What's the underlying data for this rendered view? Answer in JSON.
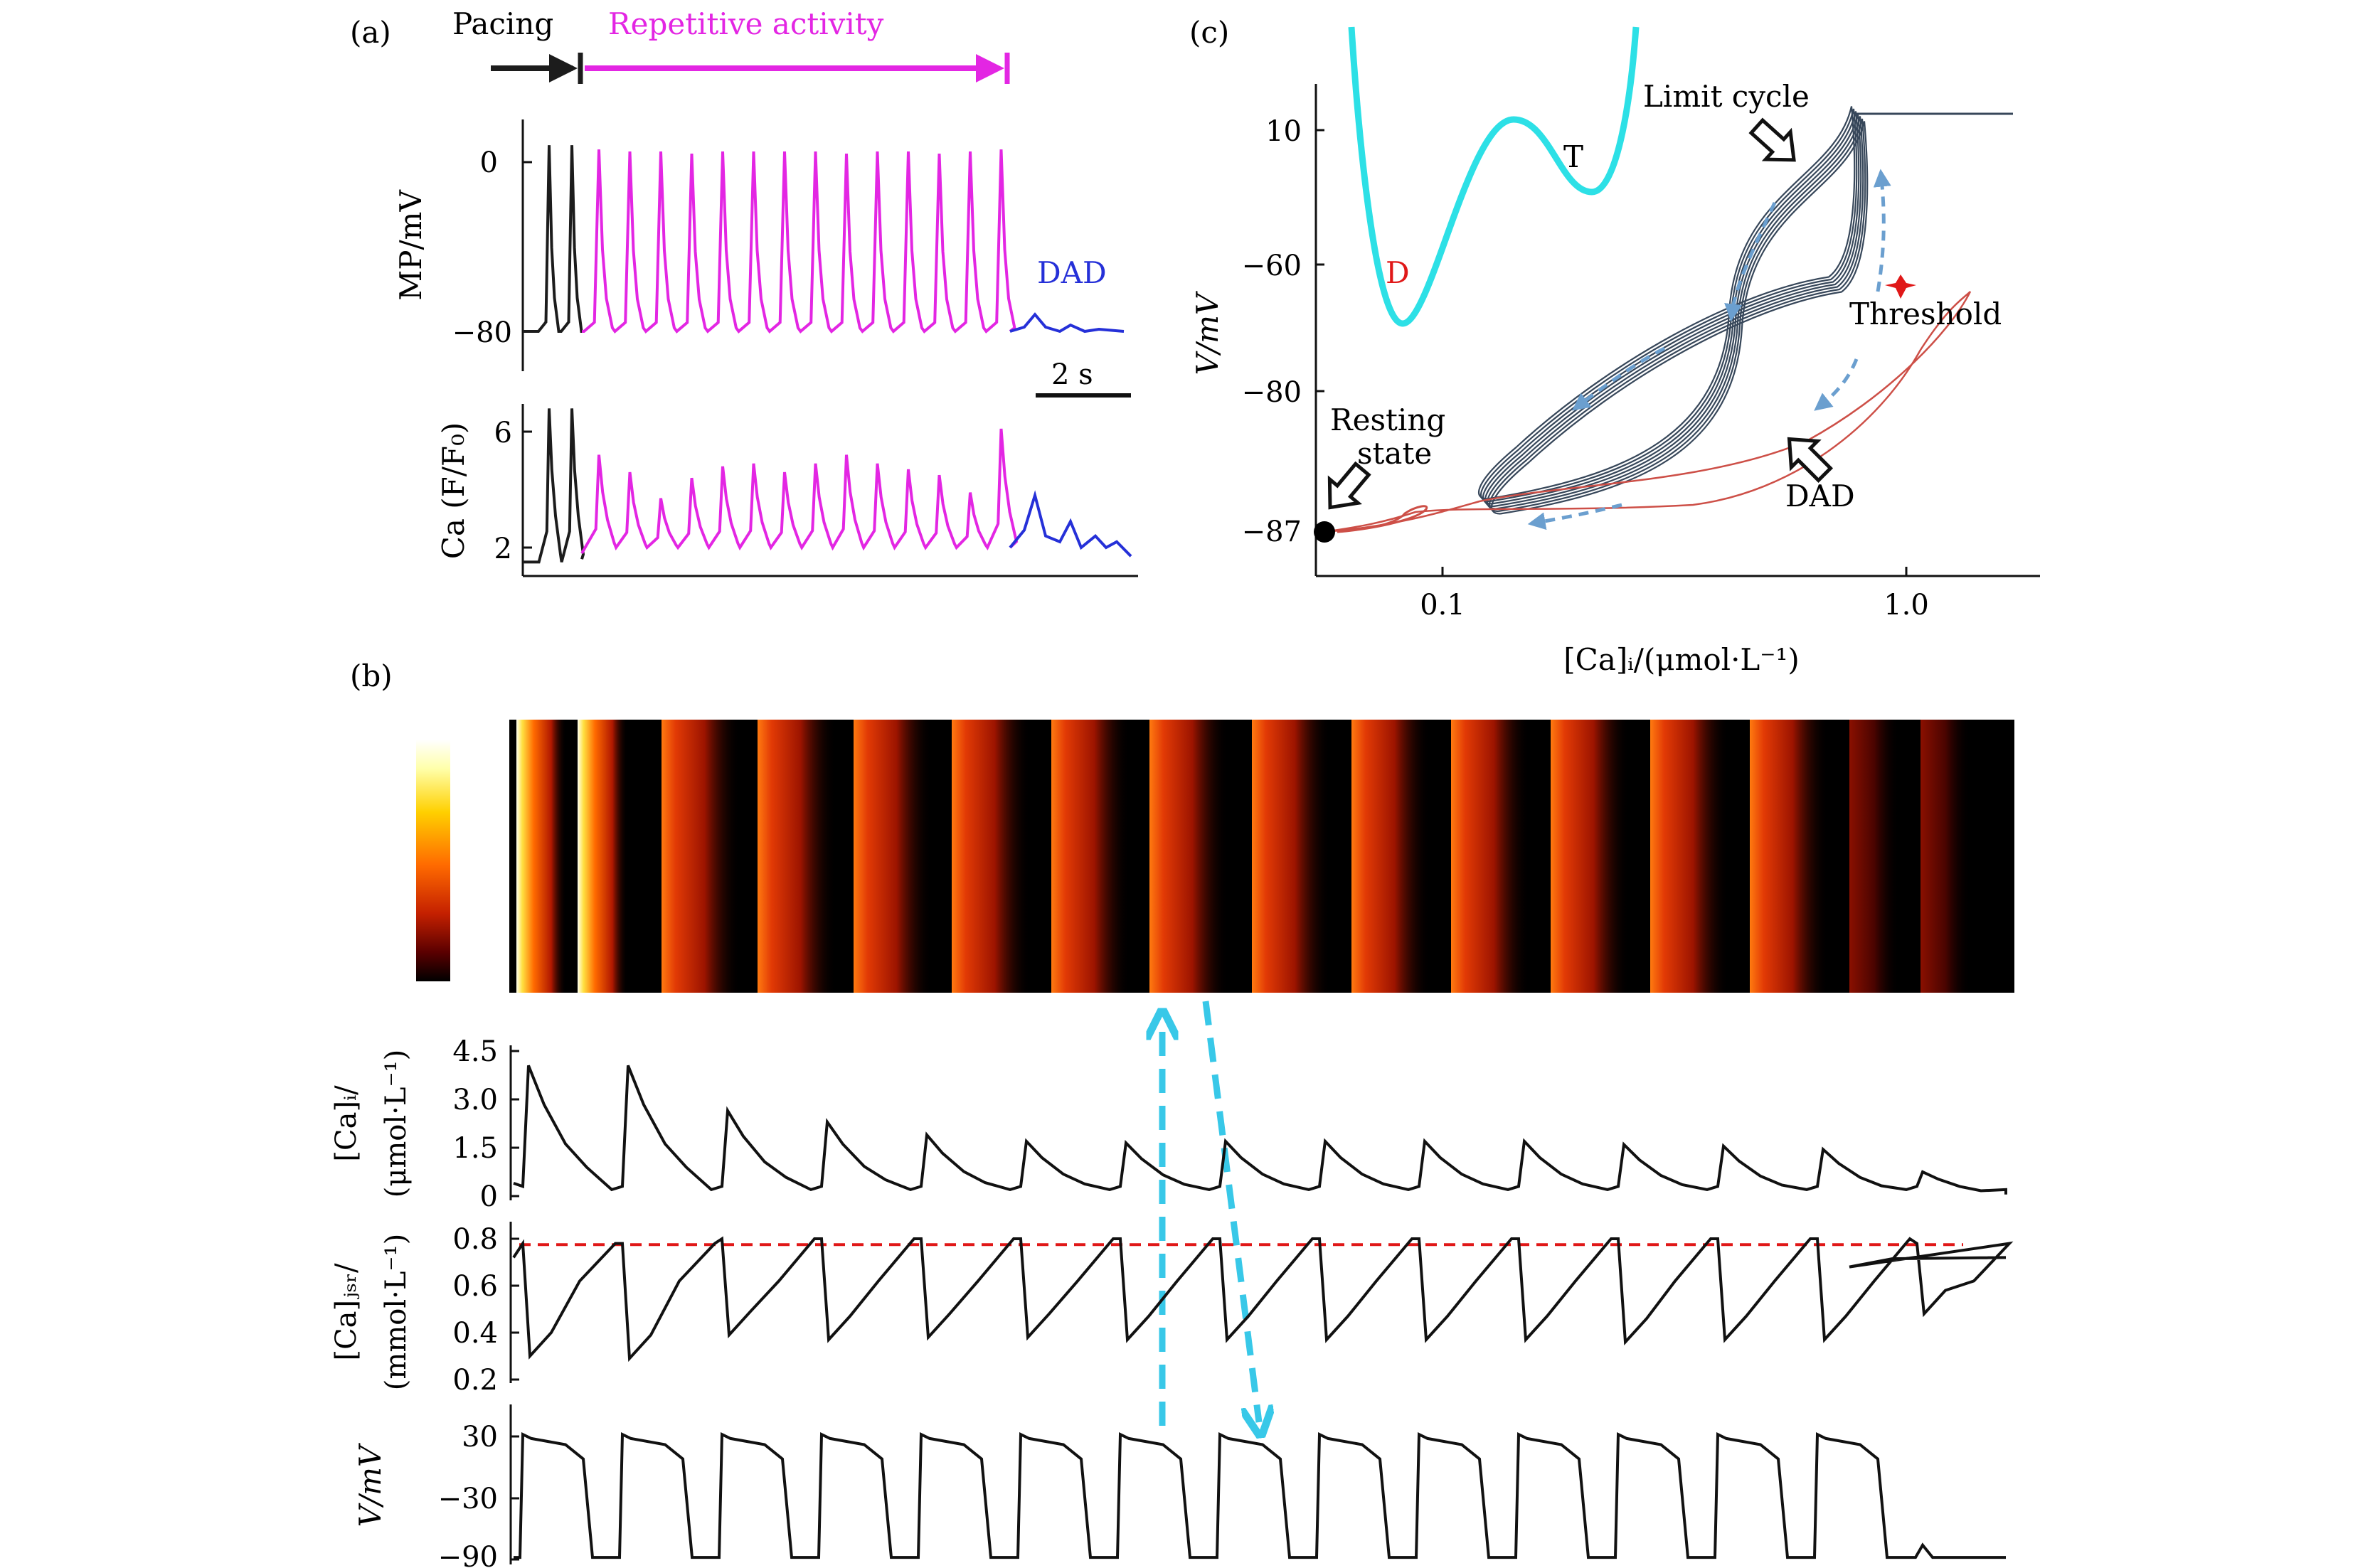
{
  "panels": {
    "a": {
      "label": "(a)"
    },
    "b": {
      "label": "(b)"
    },
    "c": {
      "label": "(c)"
    }
  },
  "colors": {
    "axis": "#111111",
    "pacing": "#1c1c1c",
    "repetitive": "#e326e3",
    "dad": "#2530d8",
    "cyan": "#38c8e8",
    "threshold_line": "#e01818",
    "loop": "#37475a",
    "dad_trajectory": "#cd4f47",
    "flow_arrow": "#6b9fcf",
    "threshold_marker": "#e01818"
  },
  "chart_data": [
    {
      "type": "line",
      "panel": "a",
      "annotations": {
        "pacing": "Pacing",
        "repetitive": "Repetitive activity",
        "dad": "DAD",
        "scalebar": "2 s"
      },
      "ylabel": "MP/mV",
      "yticks": [
        "0",
        "−80"
      ],
      "yrange": [
        -95,
        12
      ],
      "series": [
        {
          "segment": "pacing",
          "beats": 2,
          "rest": -80,
          "peak": 8
        },
        {
          "segment": "repetitive",
          "beats": 14,
          "rest": -80,
          "peaks": [
            6,
            5,
            5,
            4,
            5,
            5,
            5,
            5,
            4,
            5,
            5,
            4,
            5,
            6
          ]
        },
        {
          "segment": "dad",
          "bumps": [
            -72,
            -77,
            -79
          ],
          "rest": -80
        }
      ]
    },
    {
      "type": "line",
      "panel": "a-ca",
      "ylabel": "Ca (F/F₀)",
      "yticks": [
        "6",
        "2"
      ],
      "yrange": [
        1.3,
        6.8
      ],
      "series": [
        {
          "segment": "pacing",
          "beats": 2,
          "peak": 6.8,
          "rest": 1.5
        },
        {
          "segment": "repetitive",
          "beats": 14,
          "peaks": [
            5.2,
            4.6,
            3.7,
            4.4,
            4.8,
            4.9,
            4.6,
            4.9,
            5.2,
            4.9,
            4.7,
            4.5,
            3.9,
            6.1
          ],
          "rest": 2.0
        },
        {
          "segment": "dad",
          "bumps": [
            3.8,
            2.9,
            2.4,
            2.2
          ],
          "rest": 1.7
        }
      ]
    },
    {
      "type": "heatmap",
      "panel": "b-linescan",
      "bands": 16,
      "colormap": [
        "#000000",
        "#5a0000",
        "#c42000",
        "#ff6a00",
        "#ffd000",
        "#ffffcc",
        "#ffffff"
      ]
    },
    {
      "type": "line",
      "panel": "b-cai",
      "ylabel": [
        "[Ca]ᵢ/",
        "(μmol·L⁻¹)"
      ],
      "yticks": [
        "4.5",
        "3.0",
        "1.5",
        "0"
      ],
      "yrange": [
        0,
        4.5
      ],
      "peaks": [
        4.05,
        4.05,
        2.65,
        2.3,
        1.9,
        1.7,
        1.65,
        1.7,
        1.7,
        1.7,
        1.7,
        1.6,
        1.55,
        1.45,
        0.75
      ],
      "rest": 0.1,
      "final": 0.05
    },
    {
      "type": "line",
      "panel": "b-cajsr",
      "ylabel": [
        "[Ca]ⱼₛᵣ/",
        "(mmol·L⁻¹)"
      ],
      "yticks": [
        "0.8",
        "0.6",
        "0.4",
        "0.2"
      ],
      "yrange": [
        0.2,
        0.82
      ],
      "threshold": 0.775,
      "minima": [
        0.3,
        0.29,
        0.39,
        0.37,
        0.38,
        0.38,
        0.37,
        0.37,
        0.37,
        0.37,
        0.37,
        0.36,
        0.37,
        0.37,
        0.48
      ],
      "peaks": [
        0.78,
        0.78,
        0.8,
        0.8,
        0.8,
        0.8,
        0.8,
        0.8,
        0.8,
        0.8,
        0.8,
        0.8,
        0.8,
        0.8
      ],
      "final": 0.72
    },
    {
      "type": "line",
      "panel": "b-v",
      "ylabel": "V/mV",
      "yticks": [
        "30",
        "−30",
        "−90"
      ],
      "yrange": [
        -92,
        38
      ],
      "plateau": 28,
      "rest": -88,
      "beats": 14,
      "dad_peak": -76
    },
    {
      "type": "scatter",
      "panel": "c",
      "xlabel": "[Ca]ᵢ/(μmol·L⁻¹)",
      "ylabel": "V/mV",
      "xscale": "log",
      "xticks": [
        "0.1",
        "1.0"
      ],
      "yticks": [
        "10",
        "−60",
        "−80",
        "−87"
      ],
      "annotations": {
        "limit_cycle": "Limit cycle",
        "threshold": "Threshold",
        "resting_l1": "Resting",
        "resting_l2": "state",
        "dad": "DAD",
        "well_d": "D",
        "well_t": "T"
      },
      "resting_point": {
        "x": 0.05,
        "y": -87
      },
      "threshold_point": {
        "x": 0.78,
        "y": -62
      }
    }
  ]
}
